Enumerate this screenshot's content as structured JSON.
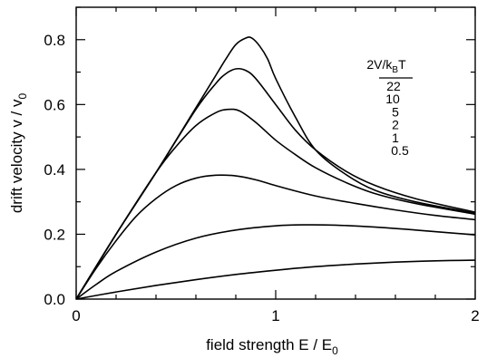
{
  "chart_data": {
    "type": "line",
    "xlabel": {
      "main": "field strength  E / E",
      "sub": "0"
    },
    "ylabel": {
      "main": "drift velocity  v / v",
      "sub": "0"
    },
    "xlim": [
      0,
      2
    ],
    "ylim": [
      0,
      0.9
    ],
    "x_ticks": [
      0,
      1,
      2
    ],
    "x_tick_labels": [
      "0",
      "1",
      "2"
    ],
    "y_ticks": [
      0.0,
      0.2,
      0.4,
      0.6,
      0.8
    ],
    "y_tick_labels": [
      "0.0",
      "0.2",
      "0.4",
      "0.6",
      "0.8"
    ],
    "grid": false,
    "legend": {
      "placement": "top-right",
      "title": {
        "main": "2V/k",
        "sub": "B",
        "tail": "T"
      },
      "entries": [
        "22",
        "10",
        "5",
        "2",
        "1",
        "0.5"
      ]
    },
    "series": [
      {
        "name": "22",
        "x": [
          0,
          0.2,
          0.4,
          0.6,
          0.7,
          0.75,
          0.8,
          0.85,
          0.88,
          0.92,
          0.96,
          1.0,
          1.1,
          1.2,
          1.35,
          1.5,
          1.7,
          2.0
        ],
        "y": [
          0,
          0.2,
          0.39,
          0.59,
          0.69,
          0.74,
          0.785,
          0.805,
          0.805,
          0.78,
          0.74,
          0.68,
          0.56,
          0.46,
          0.385,
          0.335,
          0.3,
          0.265
        ]
      },
      {
        "name": "10",
        "x": [
          0,
          0.2,
          0.4,
          0.6,
          0.7,
          0.75,
          0.8,
          0.85,
          0.9,
          1.0,
          1.1,
          1.2,
          1.35,
          1.5,
          1.7,
          2.0
        ],
        "y": [
          0,
          0.2,
          0.39,
          0.585,
          0.665,
          0.695,
          0.71,
          0.705,
          0.68,
          0.6,
          0.52,
          0.46,
          0.395,
          0.35,
          0.31,
          0.268
        ]
      },
      {
        "name": "5",
        "x": [
          0,
          0.2,
          0.4,
          0.5,
          0.6,
          0.7,
          0.76,
          0.82,
          0.9,
          1.0,
          1.1,
          1.2,
          1.35,
          1.5,
          1.7,
          2.0
        ],
        "y": [
          0,
          0.2,
          0.39,
          0.47,
          0.535,
          0.575,
          0.585,
          0.58,
          0.545,
          0.49,
          0.445,
          0.405,
          0.36,
          0.325,
          0.295,
          0.262
        ]
      },
      {
        "name": "2",
        "x": [
          0,
          0.1,
          0.2,
          0.3,
          0.4,
          0.5,
          0.6,
          0.7,
          0.8,
          0.9,
          1.0,
          1.2,
          1.4,
          1.6,
          1.8,
          2.0
        ],
        "y": [
          0,
          0.095,
          0.18,
          0.255,
          0.31,
          0.35,
          0.373,
          0.382,
          0.38,
          0.368,
          0.35,
          0.318,
          0.295,
          0.275,
          0.258,
          0.245
        ]
      },
      {
        "name": "1",
        "x": [
          0,
          0.1,
          0.2,
          0.4,
          0.6,
          0.8,
          1.0,
          1.15,
          1.3,
          1.5,
          1.7,
          2.0
        ],
        "y": [
          0,
          0.045,
          0.085,
          0.145,
          0.188,
          0.213,
          0.226,
          0.229,
          0.228,
          0.222,
          0.213,
          0.198
        ]
      },
      {
        "name": "0.5",
        "x": [
          0,
          0.2,
          0.4,
          0.6,
          0.8,
          1.0,
          1.2,
          1.4,
          1.6,
          1.8,
          2.0
        ],
        "y": [
          0,
          0.022,
          0.042,
          0.06,
          0.076,
          0.089,
          0.1,
          0.108,
          0.114,
          0.118,
          0.12
        ]
      }
    ]
  }
}
